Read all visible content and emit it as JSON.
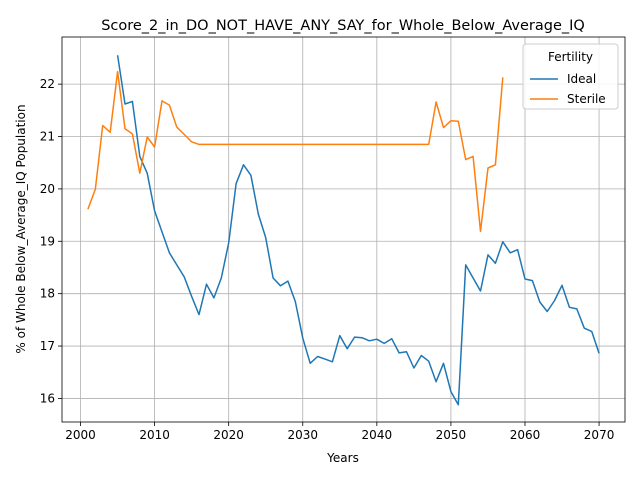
{
  "chart_data": {
    "type": "line",
    "title": "Score_2_in_DO_NOT_HAVE_ANY_SAY_for_Whole_Below_Average_IQ",
    "xlabel": "Years",
    "ylabel": "% of Whole Below_Average_IQ Population",
    "xlim": [
      1997.5,
      2073.5
    ],
    "ylim": [
      15.55,
      22.9
    ],
    "xticks": [
      2000,
      2010,
      2020,
      2030,
      2040,
      2050,
      2060,
      2070
    ],
    "yticks": [
      16,
      17,
      18,
      19,
      20,
      21,
      22
    ],
    "grid": true,
    "legend": {
      "title": "Fertility",
      "placement": "top-right"
    },
    "series": [
      {
        "name": "Ideal",
        "color": "#1f77b4",
        "points": [
          [
            2005,
            22.55
          ],
          [
            2006,
            21.62
          ],
          [
            2007,
            21.67
          ],
          [
            2008,
            20.62
          ],
          [
            2009,
            20.3
          ],
          [
            2010,
            19.58
          ],
          [
            2011,
            19.18
          ],
          [
            2012,
            18.78
          ],
          [
            2013,
            18.55
          ],
          [
            2014,
            18.32
          ],
          [
            2015,
            17.95
          ],
          [
            2016,
            17.6
          ],
          [
            2017,
            18.18
          ],
          [
            2018,
            17.92
          ],
          [
            2019,
            18.3
          ],
          [
            2020,
            18.97
          ],
          [
            2021,
            20.1
          ],
          [
            2022,
            20.46
          ],
          [
            2023,
            20.26
          ],
          [
            2024,
            19.52
          ],
          [
            2025,
            19.07
          ],
          [
            2026,
            18.3
          ],
          [
            2027,
            18.15
          ],
          [
            2028,
            18.24
          ],
          [
            2029,
            17.85
          ],
          [
            2030,
            17.15
          ],
          [
            2031,
            16.67
          ],
          [
            2032,
            16.8
          ],
          [
            2033,
            16.75
          ],
          [
            2034,
            16.7
          ],
          [
            2035,
            17.2
          ],
          [
            2036,
            16.95
          ],
          [
            2037,
            17.17
          ],
          [
            2038,
            17.16
          ],
          [
            2039,
            17.1
          ],
          [
            2040,
            17.13
          ],
          [
            2041,
            17.05
          ],
          [
            2042,
            17.14
          ],
          [
            2043,
            16.87
          ],
          [
            2044,
            16.89
          ],
          [
            2045,
            16.58
          ],
          [
            2046,
            16.82
          ],
          [
            2047,
            16.71
          ],
          [
            2048,
            16.32
          ],
          [
            2049,
            16.67
          ],
          [
            2050,
            16.13
          ],
          [
            2051,
            15.88
          ],
          [
            2052,
            18.55
          ],
          [
            2053,
            18.3
          ],
          [
            2054,
            18.05
          ],
          [
            2055,
            18.74
          ],
          [
            2056,
            18.58
          ],
          [
            2057,
            18.99
          ],
          [
            2058,
            18.78
          ],
          [
            2059,
            18.84
          ],
          [
            2060,
            18.28
          ],
          [
            2061,
            18.25
          ],
          [
            2062,
            17.84
          ],
          [
            2063,
            17.66
          ],
          [
            2064,
            17.87
          ],
          [
            2065,
            18.16
          ],
          [
            2066,
            17.74
          ],
          [
            2067,
            17.71
          ],
          [
            2068,
            17.34
          ],
          [
            2069,
            17.28
          ],
          [
            2070,
            16.86
          ]
        ]
      },
      {
        "name": "Sterile",
        "color": "#ff7f0e",
        "points": [
          [
            2001,
            19.61
          ],
          [
            2002,
            19.99
          ],
          [
            2003,
            21.21
          ],
          [
            2004,
            21.08
          ],
          [
            2005,
            22.24
          ],
          [
            2006,
            21.15
          ],
          [
            2007,
            21.05
          ],
          [
            2008,
            20.3
          ],
          [
            2009,
            20.99
          ],
          [
            2010,
            20.8
          ],
          [
            2011,
            21.68
          ],
          [
            2012,
            21.6
          ],
          [
            2013,
            21.18
          ],
          [
            2014,
            21.04
          ],
          [
            2015,
            20.9
          ],
          [
            2016,
            20.85
          ],
          [
            2020,
            20.85
          ],
          [
            2030,
            20.85
          ],
          [
            2040,
            20.85
          ],
          [
            2047,
            20.85
          ],
          [
            2048,
            21.66
          ],
          [
            2049,
            21.17
          ],
          [
            2050,
            21.3
          ],
          [
            2051,
            21.29
          ],
          [
            2052,
            20.56
          ],
          [
            2053,
            20.62
          ],
          [
            2054,
            19.19
          ],
          [
            2055,
            20.4
          ],
          [
            2056,
            20.46
          ],
          [
            2057,
            22.13
          ]
        ]
      }
    ]
  }
}
